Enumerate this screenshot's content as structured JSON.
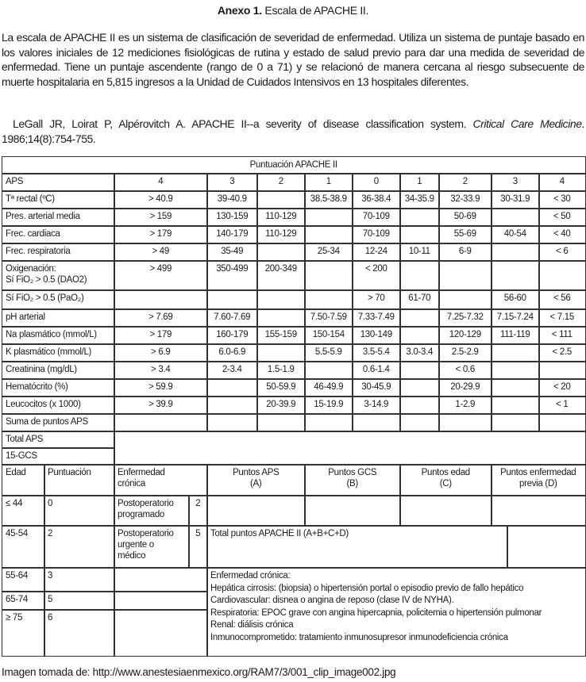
{
  "heading": {
    "bold": "Anexo 1.",
    "rest": " Escala de APACHE II."
  },
  "intro": "La escala de APACHE II es un sistema de clasificación de severidad de enfermedad. Utiliza un sistema de puntaje basado en los valores iniciales de 12 mediciones fisiológicas de rutina y estado de salud previo para dar una medida de severidad de enfermedad. Tiene un puntaje ascendente (rango de 0 a 71) y se relacionó de manera cercana al riesgo subsecuente de muerte hospitalaria en 5,815 ingresos a la Unidad de Cuidados Intensivos en 13 hospitales diferentes.",
  "reference": {
    "authors": "LeGall JR, Loirat P, Alpérovitch A. APACHE II--a severity of disease classification system. ",
    "journal": "Critical Care Medicine",
    "citation": ". 1986;14(8):754-755."
  },
  "table": {
    "title": "Puntuación APACHE II",
    "header": {
      "label": "APS",
      "scores": [
        "4",
        "3",
        "2",
        "1",
        "0",
        "1",
        "2",
        "3",
        "4"
      ]
    },
    "rows": [
      {
        "label": "Tª rectal (ºC)",
        "values": [
          "> 40.9",
          "39-40.9",
          "",
          "38.5-38.9",
          "36-38.4",
          "34-35.9",
          "32-33.9",
          "30-31.9",
          "< 30"
        ]
      },
      {
        "label": "Pres. arterial media",
        "values": [
          "> 159",
          "130-159",
          "110-129",
          "",
          "70-109",
          "",
          "50-69",
          "",
          "< 50"
        ]
      },
      {
        "label": "Frec. cardiaca",
        "values": [
          "> 179",
          "140-179",
          "110-129",
          "",
          "70-109",
          "",
          "55-69",
          "40-54",
          "< 40"
        ]
      },
      {
        "label": "Frec. respiratoria",
        "values": [
          "> 49",
          "35-49",
          "",
          "25-34",
          "12-24",
          "10-11",
          "6-9",
          "",
          "< 6"
        ]
      },
      {
        "label": "Oxigenación:\nSí FiO₂ > 0.5 (DAO2)",
        "values": [
          "> 499",
          "350-499",
          "200-349",
          "",
          "< 200",
          "",
          "",
          "",
          ""
        ]
      },
      {
        "label": "Sí FiO₂ > 0.5 (PaO₂)",
        "values": [
          "",
          "",
          "",
          "",
          "> 70",
          "61-70",
          "",
          "56-60",
          "< 56"
        ]
      },
      {
        "label": "pH arterial",
        "values": [
          "> 7.69",
          "7.60-7.69",
          "",
          "7.50-7.59",
          "7.33-7.49",
          "",
          "7.25-7.32",
          "7.15-7.24",
          "< 7.15"
        ]
      },
      {
        "label": "Na plasmático (mmol/L)",
        "values": [
          "> 179",
          "160-179",
          "155-159",
          "150-154",
          "130-149",
          "",
          "120-129",
          "111-119",
          "< 111"
        ]
      },
      {
        "label": "K plasmático (mmol/L)",
        "values": [
          "> 6.9",
          "6.0-6.9",
          "",
          "5.5-5.9",
          "3.5-5.4",
          "3.0-3.4",
          "2.5-2.9",
          "",
          "< 2.5"
        ]
      },
      {
        "label": "Creatinina (mg/dL)",
        "values": [
          "> 3.4",
          "2-3.4",
          "1.5-1.9",
          "",
          "0.6-1.4",
          "",
          "< 0.6",
          "",
          ""
        ]
      },
      {
        "label": "Hematócrito (%)",
        "values": [
          "> 59.9",
          "",
          "50-59.9",
          "46-49.9",
          "30-45.9",
          "",
          "20-29.9",
          "",
          "< 20"
        ]
      },
      {
        "label": "Leucocitos (x 1000)",
        "values": [
          "> 39.9",
          "",
          "20-39.9",
          "15-19.9",
          "3-14.9",
          "",
          "1-2.9",
          "",
          "< 1"
        ]
      },
      {
        "label": "Suma de puntos APS",
        "values": [
          "",
          "",
          "",
          "",
          "",
          "",
          "",
          "",
          ""
        ]
      }
    ],
    "total_aps": "Total APS",
    "gcs": "15-GCS",
    "age_header": {
      "edad": "Edad",
      "puntuacion": "Puntuación",
      "enfermedad": "Enfermedad\ncrónica"
    },
    "age_rows": [
      {
        "edad": "≤ 44",
        "puntos": "0"
      },
      {
        "edad": "45-54",
        "puntos": "2"
      },
      {
        "edad": "55-64",
        "puntos": "3"
      },
      {
        "edad": "65-74",
        "puntos": "5"
      },
      {
        "edad": "≥ 75",
        "puntos": "6"
      }
    ],
    "chronic": [
      {
        "label": "Postoperatorio\nprogramado",
        "points": "2"
      },
      {
        "label": "Postoperatorio\nurgente o\nmédico",
        "points": "5"
      }
    ],
    "points_headers": [
      "Puntos APS\n(A)",
      "Puntos GCS\n(B)",
      "Puntos edad\n(C)",
      "Puntos enfermedad\nprevia (D)"
    ],
    "total_label": "Total puntos APACHE II (A+B+C+D)",
    "chronic_notes": [
      "Enfermedad crónica:",
      "Hepática cirrosis: (biopsia) o hipertensión portal o episodio previo de fallo hepático",
      "Cardiovascular: disnea o angina de reposo (clase IV de NYHA).",
      "Respiratoria: EPOC grave con angina hipercapnia, policitemia o hipertensión pulmonar",
      "Renal: diálisis crónica",
      "Inmunocomprometido: tratamiento inmunosupresor inmunodeficiencia crónica"
    ]
  },
  "footer": "Imagen tomada de: http://www.anestesiaenmexico.org/RAM7/3/001_clip_image002.jpg"
}
